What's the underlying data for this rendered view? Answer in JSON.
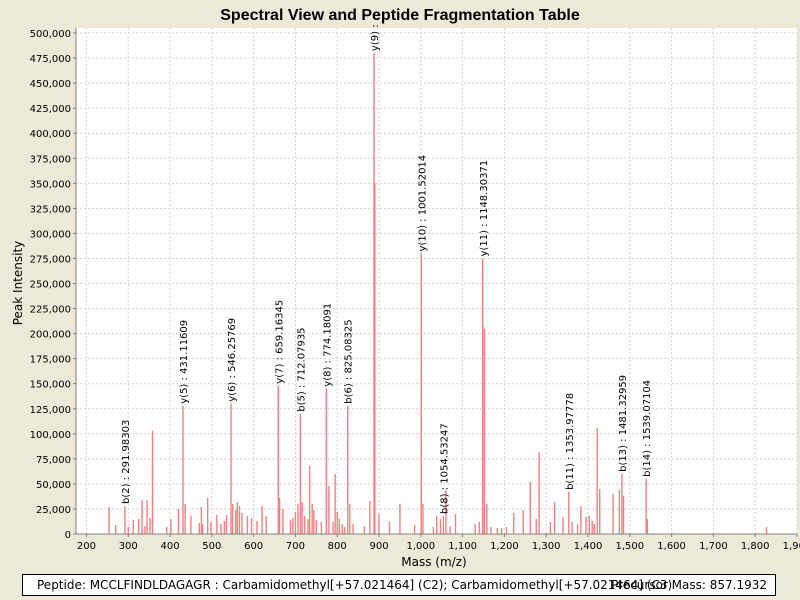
{
  "chart_data": {
    "type": "bar",
    "title": "Spectral View and Peptide Fragmentation Table",
    "xlabel": "Mass (m/z)",
    "ylabel": "Peak Intensity",
    "xlim": [
      175,
      1900
    ],
    "ylim": [
      0,
      505000
    ],
    "xticks": [
      200,
      300,
      400,
      500,
      600,
      700,
      800,
      900,
      1000,
      1100,
      1200,
      1300,
      1400,
      1500,
      1600,
      1700,
      1800,
      1900
    ],
    "xtick_labels": [
      "200",
      "300",
      "400",
      "500",
      "600",
      "700",
      "800",
      "900",
      "1,000",
      "1,100",
      "1,200",
      "1,300",
      "1,400",
      "1,500",
      "1,600",
      "1,700",
      "1,800",
      "1,900"
    ],
    "yticks": [
      0,
      25000,
      50000,
      75000,
      100000,
      125000,
      150000,
      175000,
      200000,
      225000,
      250000,
      275000,
      300000,
      325000,
      350000,
      375000,
      400000,
      425000,
      450000,
      475000,
      500000
    ],
    "ytick_labels": [
      "0",
      "25,000",
      "50,000",
      "75,000",
      "100,000",
      "125,000",
      "150,000",
      "175,000",
      "200,000",
      "225,000",
      "250,000",
      "275,000",
      "300,000",
      "325,000",
      "350,000",
      "375,000",
      "400,000",
      "425,000",
      "450,000",
      "475,000",
      "500,000"
    ],
    "grid": true,
    "colors": {
      "peak": "#F28080",
      "annotation": "#000000",
      "background": "#ECE9D8",
      "plot": "#FFFFFF",
      "grid": "#D4D4D4"
    },
    "peaks": [
      [
        254,
        27000
      ],
      [
        270,
        9000
      ],
      [
        292,
        28000
      ],
      [
        300,
        7000
      ],
      [
        312,
        14000
      ],
      [
        325,
        15000
      ],
      [
        333,
        34000
      ],
      [
        340,
        8000
      ],
      [
        345,
        34000
      ],
      [
        352,
        16000
      ],
      [
        358,
        103000
      ],
      [
        392,
        7000
      ],
      [
        402,
        15000
      ],
      [
        420,
        25000
      ],
      [
        431,
        128000
      ],
      [
        436,
        30000
      ],
      [
        450,
        18000
      ],
      [
        470,
        11000
      ],
      [
        475,
        27000
      ],
      [
        478,
        10000
      ],
      [
        490,
        36000
      ],
      [
        498,
        12000
      ],
      [
        512,
        19000
      ],
      [
        522,
        10000
      ],
      [
        530,
        13000
      ],
      [
        535,
        19000
      ],
      [
        546,
        130000
      ],
      [
        550,
        30000
      ],
      [
        557,
        24000
      ],
      [
        561,
        32000
      ],
      [
        566,
        28000
      ],
      [
        572,
        21000
      ],
      [
        585,
        18000
      ],
      [
        595,
        16000
      ],
      [
        608,
        13000
      ],
      [
        620,
        28000
      ],
      [
        630,
        18000
      ],
      [
        659,
        148000
      ],
      [
        662,
        36000
      ],
      [
        670,
        25000
      ],
      [
        688,
        14000
      ],
      [
        694,
        16000
      ],
      [
        700,
        22000
      ],
      [
        706,
        30000
      ],
      [
        712,
        120000
      ],
      [
        716,
        32000
      ],
      [
        722,
        18000
      ],
      [
        730,
        15000
      ],
      [
        734,
        68000
      ],
      [
        740,
        30000
      ],
      [
        744,
        24000
      ],
      [
        750,
        14000
      ],
      [
        762,
        12000
      ],
      [
        774,
        145000
      ],
      [
        780,
        48000
      ],
      [
        790,
        12000
      ],
      [
        795,
        60000
      ],
      [
        800,
        22000
      ],
      [
        805,
        15000
      ],
      [
        812,
        10000
      ],
      [
        818,
        7000
      ],
      [
        825,
        128000
      ],
      [
        830,
        30000
      ],
      [
        838,
        10000
      ],
      [
        865,
        8000
      ],
      [
        878,
        33000
      ],
      [
        888,
        480000
      ],
      [
        890,
        350000
      ],
      [
        900,
        20000
      ],
      [
        925,
        12000
      ],
      [
        950,
        30000
      ],
      [
        985,
        9000
      ],
      [
        1001,
        280000
      ],
      [
        1005,
        30000
      ],
      [
        1030,
        7000
      ],
      [
        1038,
        18000
      ],
      [
        1047,
        15000
      ],
      [
        1054,
        18000
      ],
      [
        1060,
        44000
      ],
      [
        1070,
        8000
      ],
      [
        1083,
        20000
      ],
      [
        1130,
        10000
      ],
      [
        1140,
        12000
      ],
      [
        1148,
        275000
      ],
      [
        1152,
        205000
      ],
      [
        1158,
        30000
      ],
      [
        1168,
        7000
      ],
      [
        1183,
        6000
      ],
      [
        1193,
        6000
      ],
      [
        1205,
        7000
      ],
      [
        1222,
        21000
      ],
      [
        1245,
        24000
      ],
      [
        1262,
        52000
      ],
      [
        1276,
        15000
      ],
      [
        1283,
        82000
      ],
      [
        1310,
        12000
      ],
      [
        1320,
        32000
      ],
      [
        1340,
        17000
      ],
      [
        1354,
        42000
      ],
      [
        1362,
        12000
      ],
      [
        1375,
        10000
      ],
      [
        1383,
        28000
      ],
      [
        1395,
        17000
      ],
      [
        1403,
        18000
      ],
      [
        1410,
        13000
      ],
      [
        1415,
        10000
      ],
      [
        1422,
        106000
      ],
      [
        1428,
        45000
      ],
      [
        1460,
        40000
      ],
      [
        1475,
        44000
      ],
      [
        1481,
        60000
      ],
      [
        1485,
        38000
      ],
      [
        1539,
        55000
      ],
      [
        1542,
        15000
      ],
      [
        1827,
        7000
      ]
    ],
    "annotations": [
      {
        "mz": 291.98303,
        "intensity": 28000,
        "label": "b(2) : 291.98303"
      },
      {
        "mz": 431.11609,
        "intensity": 128000,
        "label": "y(5) : 431.11609"
      },
      {
        "mz": 546.25769,
        "intensity": 130000,
        "label": "y(6) : 546.25769"
      },
      {
        "mz": 659.16345,
        "intensity": 148000,
        "label": "y(7) : 659.16345"
      },
      {
        "mz": 712.07935,
        "intensity": 120000,
        "label": "b(5) : 712.07935"
      },
      {
        "mz": 774.18091,
        "intensity": 145000,
        "label": "y(8) : 774.18091"
      },
      {
        "mz": 825.08325,
        "intensity": 128000,
        "label": "b(6) : 825.08325"
      },
      {
        "mz": 888.0,
        "intensity": 480000,
        "label": "y(9) :"
      },
      {
        "mz": 1001.52014,
        "intensity": 280000,
        "label": "y(10) : 1001.52014"
      },
      {
        "mz": 1054.53247,
        "intensity": 18000,
        "label": "b(8) : 1054.53247"
      },
      {
        "mz": 1148.30371,
        "intensity": 275000,
        "label": "y(11) : 1148.30371"
      },
      {
        "mz": 1353.97778,
        "intensity": 42000,
        "label": "b(11) : 1353.97778"
      },
      {
        "mz": 1481.32959,
        "intensity": 60000,
        "label": "b(13) : 1481.32959"
      },
      {
        "mz": 1539.07104,
        "intensity": 55000,
        "label": "b(14) : 1539.07104"
      }
    ]
  },
  "footer": {
    "peptide": "Peptide: MCCLFINDLDAGAGR : Carbamidomethyl[+57.021464] (C2); Carbamidomethyl[+57.021464] (C3)",
    "precursor": "Precursor Mass: 857.1932"
  }
}
